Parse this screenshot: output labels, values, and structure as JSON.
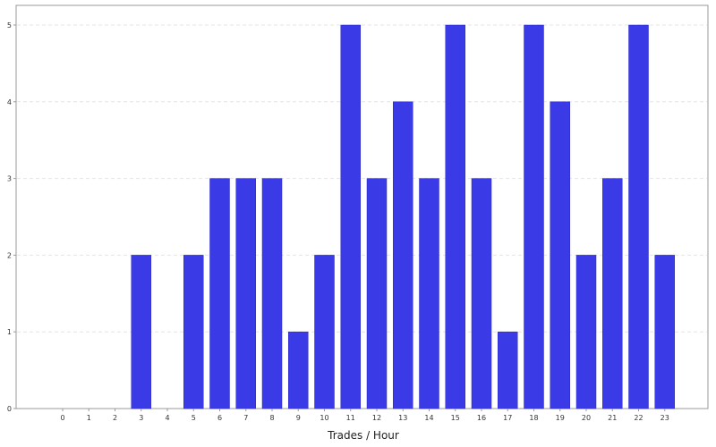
{
  "chart_data": {
    "type": "bar",
    "title": "",
    "xlabel": "Trades / Hour",
    "ylabel": "",
    "categories": [
      "0",
      "1",
      "2",
      "3",
      "4",
      "5",
      "6",
      "7",
      "8",
      "9",
      "10",
      "11",
      "12",
      "13",
      "14",
      "15",
      "16",
      "17",
      "18",
      "19",
      "20",
      "21",
      "22",
      "23"
    ],
    "values": [
      0,
      0,
      0,
      2,
      0,
      2,
      3,
      3,
      3,
      1,
      2,
      5,
      3,
      4,
      3,
      5,
      3,
      1,
      5,
      4,
      2,
      3,
      5,
      2
    ],
    "ylim": [
      0,
      5
    ],
    "yticks": [
      "0",
      "1",
      "2",
      "3",
      "4",
      "5"
    ],
    "grid": true,
    "legend": "none",
    "colors": {
      "bar": "#3a3ae6",
      "bar_edge": "#2a2ac8",
      "grid": "#e4e4e4",
      "axis": "#999999",
      "background": "#ffffff"
    }
  }
}
